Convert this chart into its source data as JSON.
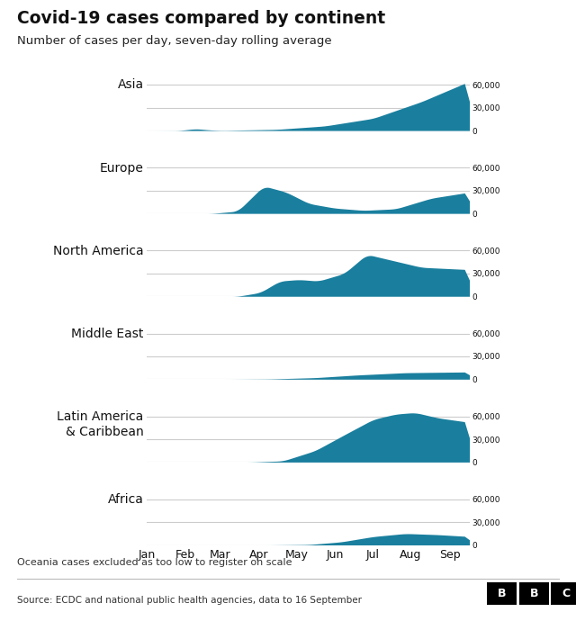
{
  "title": "Covid-19 cases compared by continent",
  "subtitle": "Number of cases per day, seven-day rolling average",
  "footnote": "Oceania cases excluded as too low to register on scale",
  "source": "Source: ECDC and national public health agencies, data to 16 September",
  "fill_color": "#1a7f9e",
  "background_color": "#ffffff",
  "grid_color": "#cccccc",
  "label_color": "#111111",
  "continents": [
    "Asia",
    "Europe",
    "North America",
    "Middle East",
    "Latin America\n& Caribbean",
    "Africa"
  ],
  "x_labels": [
    "Jan",
    "Feb",
    "Mar",
    "Apr",
    "May",
    "Jun",
    "Jul",
    "Aug",
    "Sep"
  ],
  "y_ticks": [
    0,
    30000,
    60000
  ],
  "y_tick_labels": [
    "0",
    "30,000",
    "60,000"
  ],
  "ylim": [
    0,
    68000
  ],
  "n_points": 260,
  "month_ticks": [
    0,
    31,
    59,
    90,
    120,
    151,
    181,
    212,
    243
  ]
}
